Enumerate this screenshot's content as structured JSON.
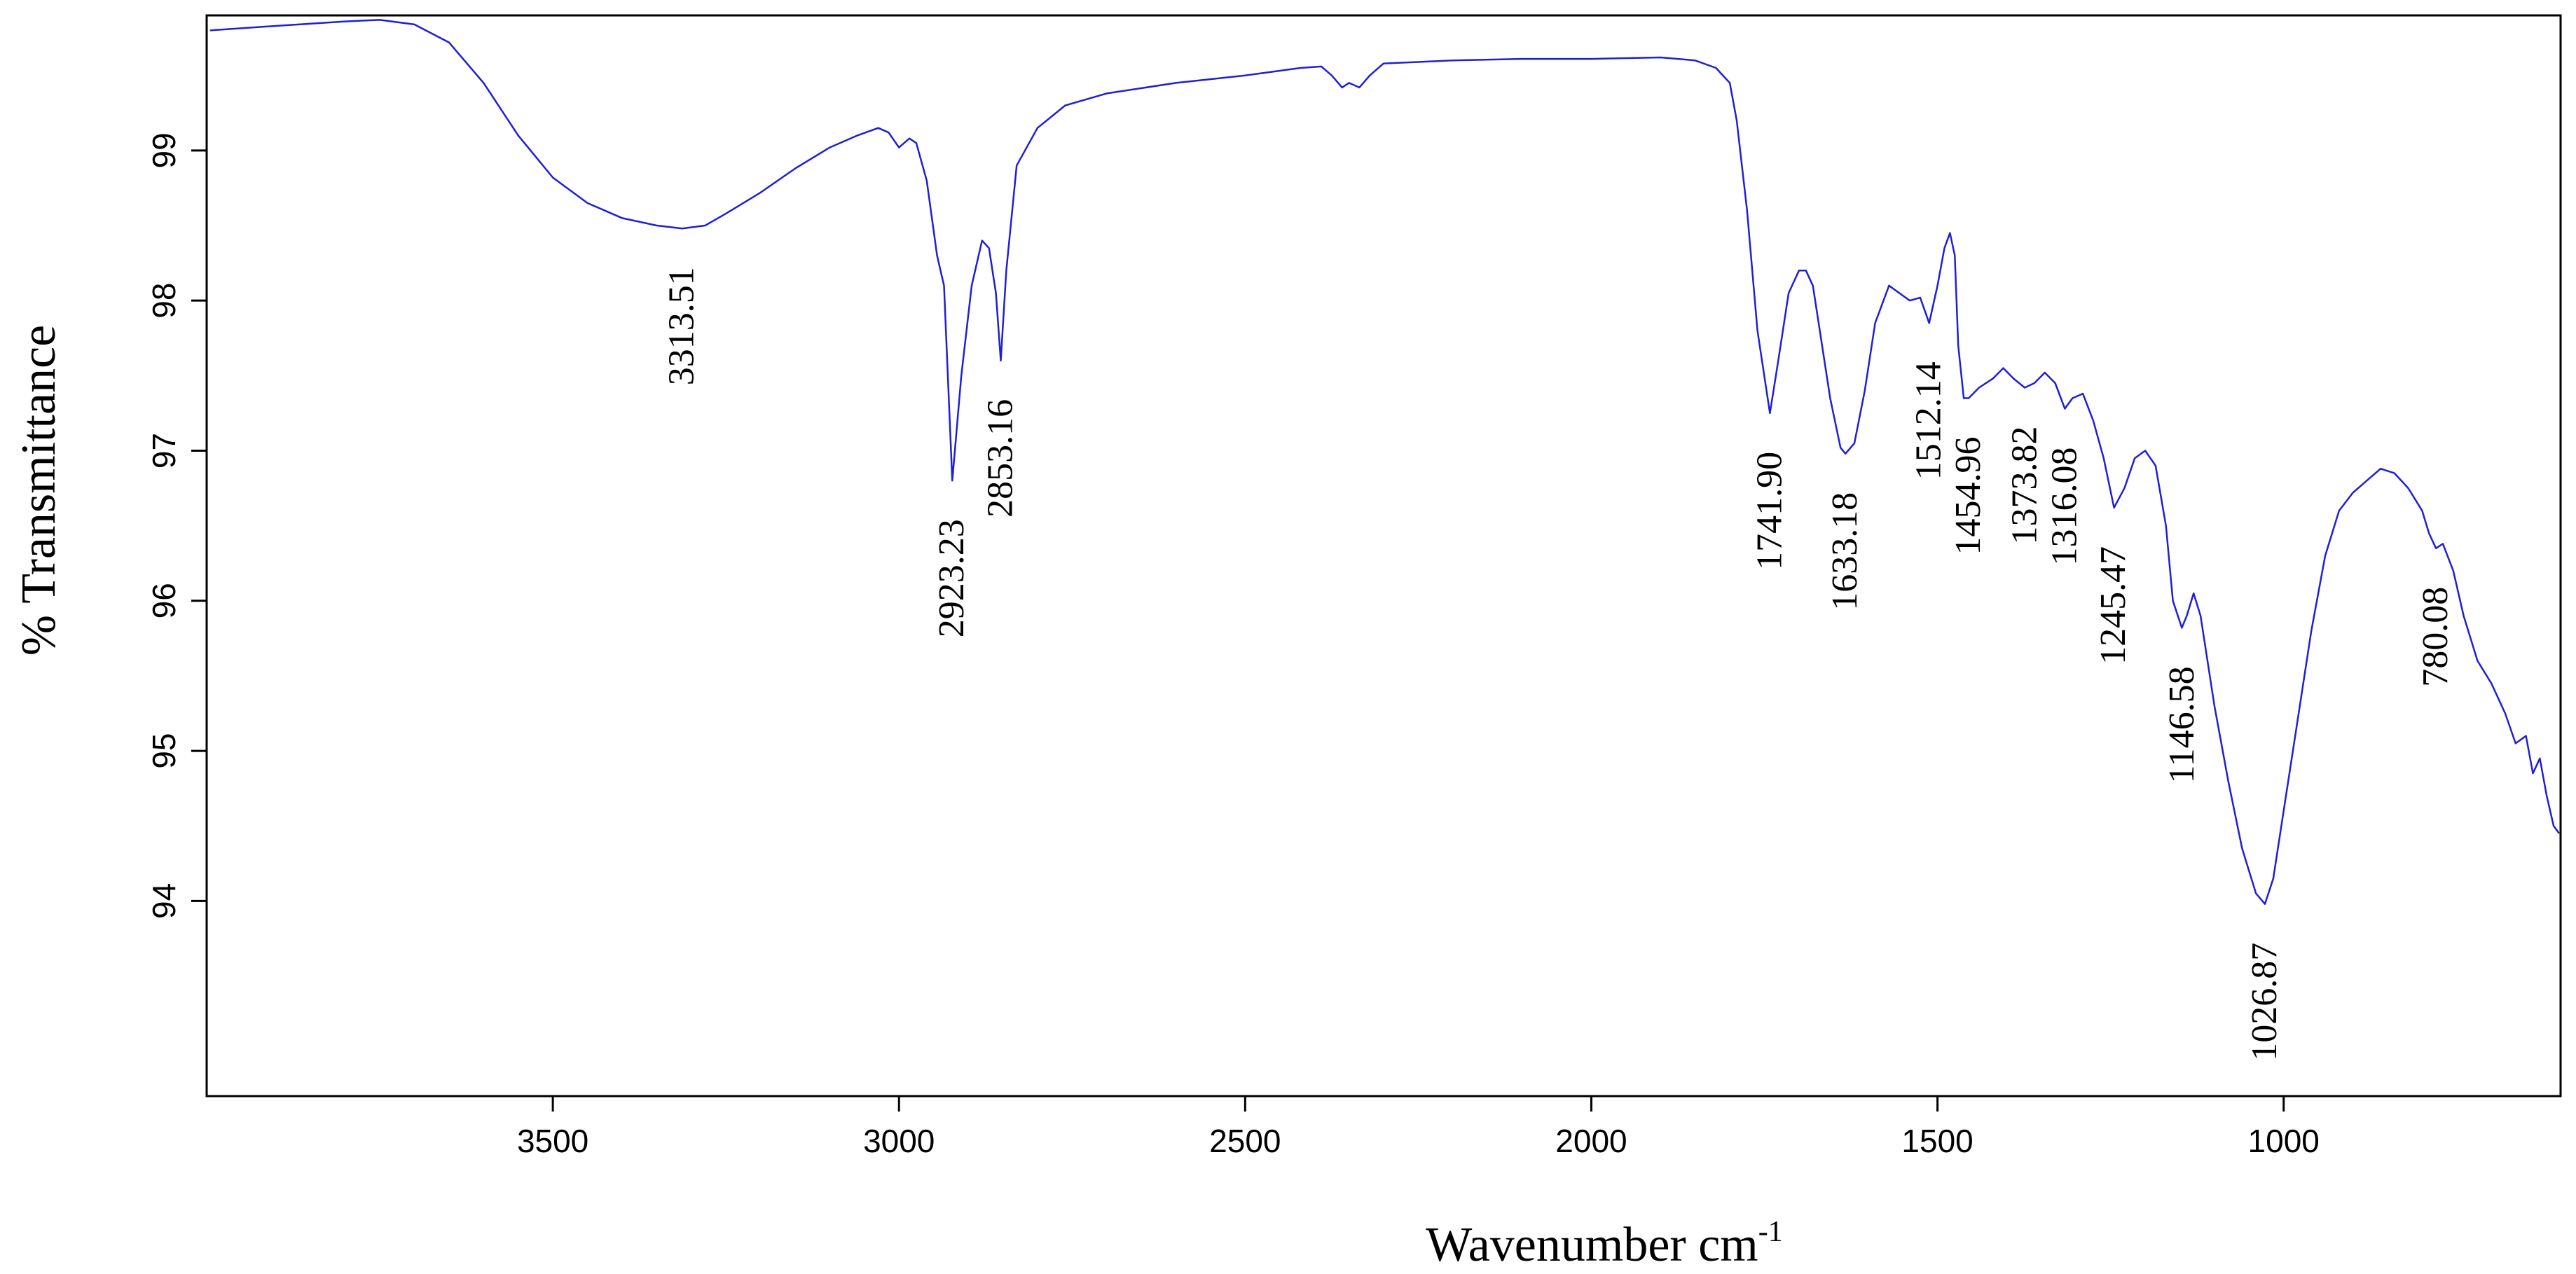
{
  "chart_data": {
    "type": "line",
    "title": "",
    "xlabel": "Wavenumber cm",
    "xlabel_sup": "-1",
    "ylabel": "% Transmittance",
    "xlim": [
      4000,
      600
    ],
    "ylim": [
      92.7,
      99.9
    ],
    "grid": false,
    "x_ticks": [
      "3500",
      "3000",
      "2500",
      "2000",
      "1500",
      "1000"
    ],
    "y_ticks": [
      "94",
      "95",
      "96",
      "97",
      "98",
      "99"
    ],
    "line_color": "#1f1fd6",
    "series": [
      {
        "points": [
          [
            3995,
            99.8
          ],
          [
            3900,
            99.83
          ],
          [
            3800,
            99.86
          ],
          [
            3750,
            99.87
          ],
          [
            3700,
            99.84
          ],
          [
            3650,
            99.72
          ],
          [
            3600,
            99.45
          ],
          [
            3550,
            99.1
          ],
          [
            3500,
            98.82
          ],
          [
            3450,
            98.65
          ],
          [
            3400,
            98.55
          ],
          [
            3350,
            98.5
          ],
          [
            3313,
            98.48
          ],
          [
            3280,
            98.5
          ],
          [
            3250,
            98.58
          ],
          [
            3200,
            98.72
          ],
          [
            3150,
            98.88
          ],
          [
            3100,
            99.02
          ],
          [
            3060,
            99.1
          ],
          [
            3030,
            99.15
          ],
          [
            3015,
            99.12
          ],
          [
            3000,
            99.02
          ],
          [
            2985,
            99.08
          ],
          [
            2975,
            99.05
          ],
          [
            2960,
            98.8
          ],
          [
            2945,
            98.3
          ],
          [
            2935,
            98.1
          ],
          [
            2923,
            96.8
          ],
          [
            2910,
            97.5
          ],
          [
            2895,
            98.1
          ],
          [
            2880,
            98.4
          ],
          [
            2870,
            98.35
          ],
          [
            2860,
            98.05
          ],
          [
            2853,
            97.6
          ],
          [
            2845,
            98.2
          ],
          [
            2830,
            98.9
          ],
          [
            2800,
            99.15
          ],
          [
            2760,
            99.3
          ],
          [
            2700,
            99.38
          ],
          [
            2600,
            99.45
          ],
          [
            2500,
            99.5
          ],
          [
            2420,
            99.55
          ],
          [
            2390,
            99.56
          ],
          [
            2375,
            99.5
          ],
          [
            2360,
            99.42
          ],
          [
            2350,
            99.45
          ],
          [
            2335,
            99.42
          ],
          [
            2320,
            99.5
          ],
          [
            2300,
            99.58
          ],
          [
            2200,
            99.6
          ],
          [
            2100,
            99.61
          ],
          [
            2000,
            99.61
          ],
          [
            1900,
            99.62
          ],
          [
            1850,
            99.6
          ],
          [
            1820,
            99.55
          ],
          [
            1800,
            99.45
          ],
          [
            1790,
            99.2
          ],
          [
            1775,
            98.6
          ],
          [
            1760,
            97.8
          ],
          [
            1742,
            97.25
          ],
          [
            1730,
            97.6
          ],
          [
            1715,
            98.05
          ],
          [
            1700,
            98.2
          ],
          [
            1690,
            98.2
          ],
          [
            1680,
            98.1
          ],
          [
            1670,
            97.8
          ],
          [
            1655,
            97.35
          ],
          [
            1640,
            97.02
          ],
          [
            1633,
            96.98
          ],
          [
            1620,
            97.05
          ],
          [
            1605,
            97.4
          ],
          [
            1590,
            97.85
          ],
          [
            1570,
            98.1
          ],
          [
            1555,
            98.05
          ],
          [
            1540,
            98.0
          ],
          [
            1525,
            98.02
          ],
          [
            1512,
            97.85
          ],
          [
            1500,
            98.1
          ],
          [
            1490,
            98.35
          ],
          [
            1482,
            98.45
          ],
          [
            1475,
            98.3
          ],
          [
            1470,
            97.7
          ],
          [
            1462,
            97.35
          ],
          [
            1455,
            97.35
          ],
          [
            1440,
            97.42
          ],
          [
            1420,
            97.48
          ],
          [
            1405,
            97.55
          ],
          [
            1390,
            97.48
          ],
          [
            1374,
            97.42
          ],
          [
            1360,
            97.45
          ],
          [
            1345,
            97.52
          ],
          [
            1330,
            97.45
          ],
          [
            1316,
            97.28
          ],
          [
            1305,
            97.35
          ],
          [
            1290,
            97.38
          ],
          [
            1275,
            97.2
          ],
          [
            1260,
            96.95
          ],
          [
            1245,
            96.62
          ],
          [
            1230,
            96.75
          ],
          [
            1215,
            96.95
          ],
          [
            1200,
            97.0
          ],
          [
            1185,
            96.9
          ],
          [
            1170,
            96.5
          ],
          [
            1160,
            96.0
          ],
          [
            1147,
            95.82
          ],
          [
            1140,
            95.9
          ],
          [
            1130,
            96.05
          ],
          [
            1120,
            95.9
          ],
          [
            1100,
            95.3
          ],
          [
            1080,
            94.8
          ],
          [
            1060,
            94.35
          ],
          [
            1040,
            94.05
          ],
          [
            1027,
            93.98
          ],
          [
            1015,
            94.15
          ],
          [
            1000,
            94.6
          ],
          [
            980,
            95.2
          ],
          [
            960,
            95.8
          ],
          [
            940,
            96.3
          ],
          [
            920,
            96.6
          ],
          [
            900,
            96.72
          ],
          [
            880,
            96.8
          ],
          [
            860,
            96.88
          ],
          [
            840,
            96.85
          ],
          [
            820,
            96.75
          ],
          [
            800,
            96.6
          ],
          [
            790,
            96.45
          ],
          [
            780,
            96.35
          ],
          [
            770,
            96.38
          ],
          [
            755,
            96.2
          ],
          [
            740,
            95.9
          ],
          [
            720,
            95.6
          ],
          [
            700,
            95.45
          ],
          [
            680,
            95.25
          ],
          [
            665,
            95.05
          ],
          [
            650,
            95.1
          ],
          [
            640,
            94.85
          ],
          [
            630,
            94.95
          ],
          [
            620,
            94.7
          ],
          [
            610,
            94.5
          ],
          [
            602,
            94.45
          ]
        ]
      }
    ],
    "peak_labels": [
      {
        "text": "3313.51",
        "x": 3313.51,
        "y": 98.48
      },
      {
        "text": "2923.23",
        "x": 2923.23,
        "y": 96.8
      },
      {
        "text": "2853.16",
        "x": 2853.16,
        "y": 97.6
      },
      {
        "text": "1741.90",
        "x": 1741.9,
        "y": 97.25
      },
      {
        "text": "1633.18",
        "x": 1633.18,
        "y": 96.98
      },
      {
        "text": "1512.14",
        "x": 1512.14,
        "y": 97.85
      },
      {
        "text": "1454.96",
        "x": 1454.96,
        "y": 97.35
      },
      {
        "text": "1373.82",
        "x": 1373.82,
        "y": 97.42
      },
      {
        "text": "1316.08",
        "x": 1316.08,
        "y": 97.28
      },
      {
        "text": "1245.47",
        "x": 1245.47,
        "y": 96.62
      },
      {
        "text": "1146.58",
        "x": 1146.58,
        "y": 95.82
      },
      {
        "text": "1026.87",
        "x": 1026.87,
        "y": 93.98
      },
      {
        "text": "780.08",
        "x": 780.08,
        "y": 96.35
      }
    ]
  }
}
